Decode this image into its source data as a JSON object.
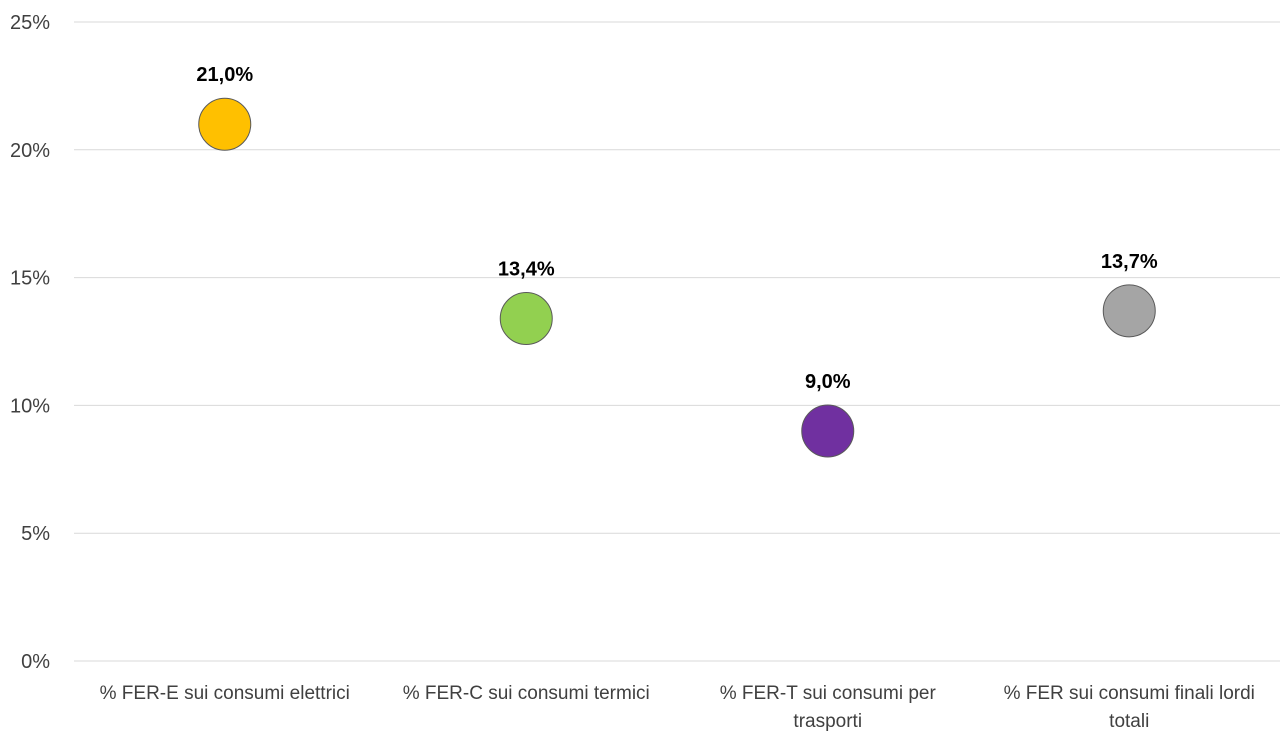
{
  "chart_data": {
    "type": "scatter",
    "title": "",
    "xlabel": "",
    "ylabel": "",
    "ylim": [
      0,
      25
    ],
    "y_ticks": [
      "0%",
      "5%",
      "10%",
      "15%",
      "20%",
      "25%"
    ],
    "y_tick_values": [
      0,
      5,
      10,
      15,
      20,
      25
    ],
    "grid": true,
    "categories": [
      [
        "% FER-E sui consumi elettrici"
      ],
      [
        "% FER-C sui consumi termici"
      ],
      [
        "% FER-T sui consumi per",
        "trasporti"
      ],
      [
        "% FER sui consumi finali lordi",
        "totali"
      ]
    ],
    "values": [
      21.0,
      13.4,
      9.0,
      13.7
    ],
    "data_labels": [
      "21,0%",
      "13,4%",
      "9,0%",
      "13,7%"
    ],
    "colors": [
      "#FFC000",
      "#92D050",
      "#7030A0",
      "#A5A5A5"
    ]
  }
}
